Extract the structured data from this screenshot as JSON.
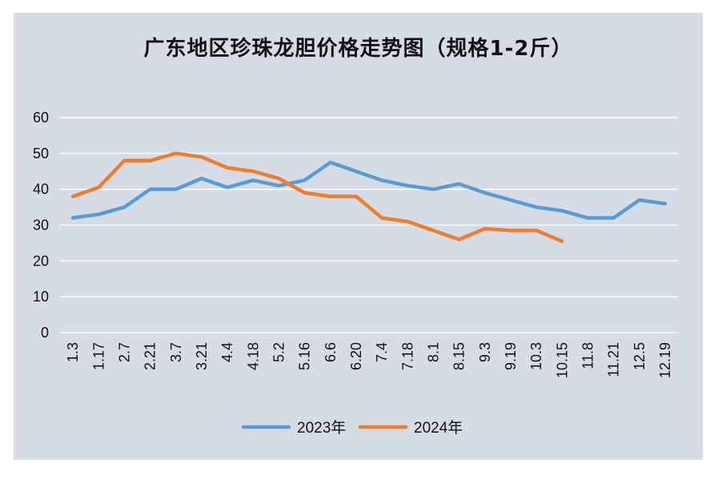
{
  "chart_data": {
    "type": "line",
    "title": "广东地区珍珠龙胆价格走势图（规格1-2斤）",
    "xlabel": "",
    "ylabel": "",
    "ylim": [
      0,
      60
    ],
    "yticks": [
      0,
      10,
      20,
      30,
      40,
      50,
      60
    ],
    "grid": true,
    "legend_position": "bottom",
    "categories": [
      "1.3",
      "1.17",
      "2.7",
      "2.21",
      "3.7",
      "3.21",
      "4.4",
      "4.18",
      "5.2",
      "5.16",
      "6.6",
      "6.20",
      "7.4",
      "7.18",
      "8.1",
      "8.15",
      "9.3",
      "9.19",
      "10.3",
      "10.15",
      "11.8",
      "11.21",
      "12.5",
      "12.19"
    ],
    "series": [
      {
        "name": "2023年",
        "color": "#5b9bd5",
        "values": [
          32,
          33,
          35,
          40,
          40,
          43,
          40.5,
          42.5,
          41,
          42.5,
          47.5,
          45,
          42.5,
          41,
          40,
          41.5,
          39,
          37,
          35,
          34,
          32,
          32,
          37,
          36
        ]
      },
      {
        "name": "2024年",
        "color": "#ed7d31",
        "values": [
          38,
          40.5,
          48,
          48,
          50,
          49,
          46,
          45,
          43,
          39,
          38,
          38,
          32,
          31,
          28.5,
          26,
          29,
          28.5,
          28.5,
          25.5,
          null,
          null,
          null,
          null
        ]
      }
    ]
  }
}
